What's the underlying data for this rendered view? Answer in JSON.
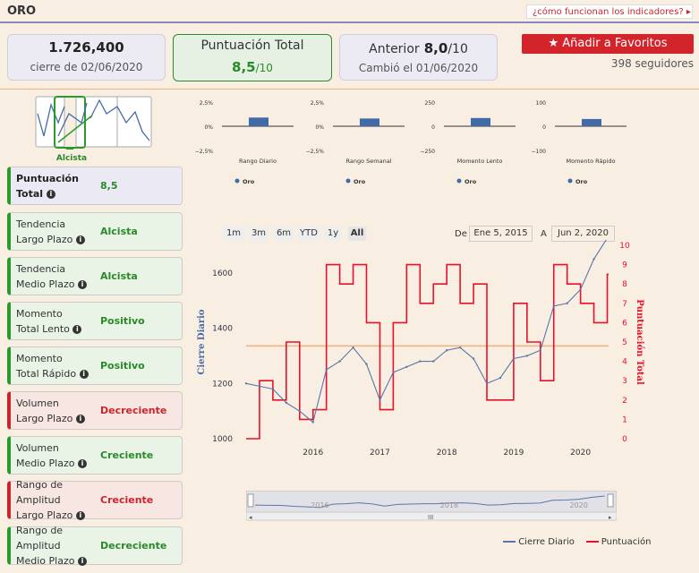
{
  "header": {
    "title": "ORO",
    "help_link": "¿cómo funcionan los indicadores?"
  },
  "cards": {
    "close_value": "1.726,400",
    "close_date": "cierre de 02/06/2020",
    "score_title": "Puntuación Total",
    "score_value": "8,5",
    "score_of": "/10",
    "prev_label": "Anterior",
    "prev_value": "8,0",
    "prev_of": "/10",
    "prev_changed": "Cambió el 01/06/2020"
  },
  "favorite": {
    "label": "Añadir a Favoritos",
    "followers": "398 seguidores"
  },
  "trend_thumb_label": "Alcista",
  "indicators": [
    {
      "line1": "Puntuación",
      "line2": "Total",
      "value": "8,5",
      "kind": "blue"
    },
    {
      "line1": "Tendencia",
      "line2": "Largo Plazo",
      "value": "Alcista",
      "kind": "green"
    },
    {
      "line1": "Tendencia",
      "line2": "Medio Plazo",
      "value": "Alcista",
      "kind": "green"
    },
    {
      "line1": "Momento",
      "line2": "Total Lento",
      "value": "Positivo",
      "kind": "green"
    },
    {
      "line1": "Momento",
      "line2": "Total Rápido",
      "value": "Positivo",
      "kind": "green"
    },
    {
      "line1": "Volumen",
      "line2": "Largo Plazo",
      "value": "Decreciente",
      "kind": "red"
    },
    {
      "line1": "Volumen",
      "line2": "Medio Plazo",
      "value": "Creciente",
      "kind": "green"
    },
    {
      "line1": "Rango de Amplitud",
      "line2": "Largo Plazo",
      "value": "Creciente",
      "kind": "red"
    },
    {
      "line1": "Rango de Amplitud",
      "line2": "Medio Plazo",
      "value": "Decreciente",
      "kind": "green"
    }
  ],
  "chart_data": [
    {
      "type": "bar",
      "title": "Rango Diario",
      "categories": [
        ""
      ],
      "series": [
        {
          "name": "Oro",
          "values": [
            0.9
          ]
        }
      ],
      "ylim": [
        -2.5,
        2.5
      ],
      "yticks": [
        "2,5%",
        "0%",
        "−2,5%"
      ]
    },
    {
      "type": "bar",
      "title": "Rango Semanal",
      "categories": [
        ""
      ],
      "series": [
        {
          "name": "Oro",
          "values": [
            0.8
          ]
        }
      ],
      "ylim": [
        -2.5,
        2.5
      ],
      "yticks": [
        "2,5%",
        "0%",
        "−2,5%"
      ]
    },
    {
      "type": "bar",
      "title": "Momento Lento",
      "categories": [
        ""
      ],
      "series": [
        {
          "name": "Oro",
          "values": [
            85
          ]
        }
      ],
      "ylim": [
        -250,
        250
      ],
      "yticks": [
        "250",
        "0",
        "−250"
      ]
    },
    {
      "type": "bar",
      "title": "Momento Rápido",
      "categories": [
        ""
      ],
      "series": [
        {
          "name": "Oro",
          "values": [
            30
          ]
        }
      ],
      "ylim": [
        -100,
        100
      ],
      "yticks": [
        "100",
        "0",
        "−100"
      ]
    },
    {
      "type": "line",
      "range_buttons": [
        "1m",
        "3m",
        "6m",
        "YTD",
        "1y",
        "All"
      ],
      "selected_range": "All",
      "from_label": "De",
      "from_value": "Ene 5, 2015",
      "to_label": "A",
      "to_value": "Jun 2, 2020",
      "ylabel_left": "Cierre Diario",
      "ylabel_right": "Puntuación Total",
      "y_left_ticks": [
        1000,
        1200,
        1400,
        1600
      ],
      "y_left_lim": [
        1000,
        1700
      ],
      "y_right_ticks": [
        0,
        1,
        2,
        3,
        4,
        5,
        6,
        7,
        8,
        9,
        10
      ],
      "y_right_lim": [
        0,
        10
      ],
      "x_ticks": [
        "2016",
        "2017",
        "2018",
        "2019",
        "2020"
      ],
      "x": [
        2015.0,
        2015.2,
        2015.4,
        2015.6,
        2015.8,
        2016.0,
        2016.2,
        2016.4,
        2016.6,
        2016.8,
        2017.0,
        2017.2,
        2017.4,
        2017.6,
        2017.8,
        2018.0,
        2018.2,
        2018.4,
        2018.6,
        2018.8,
        2019.0,
        2019.2,
        2019.4,
        2019.6,
        2019.8,
        2020.0,
        2020.2,
        2020.4
      ],
      "series": [
        {
          "name": "Cierre Diario",
          "axis": "left",
          "color": "#5b76a8",
          "values": [
            1200,
            1190,
            1180,
            1130,
            1100,
            1060,
            1250,
            1280,
            1330,
            1270,
            1140,
            1240,
            1260,
            1280,
            1280,
            1320,
            1330,
            1290,
            1200,
            1220,
            1290,
            1300,
            1320,
            1480,
            1490,
            1540,
            1650,
            1726
          ]
        },
        {
          "name": "Puntuación",
          "axis": "right",
          "color": "#e8102a",
          "values": [
            0,
            3,
            2,
            5,
            1,
            1.5,
            9,
            8,
            9,
            6,
            1.5,
            6,
            9,
            7,
            8,
            9,
            7,
            8,
            2,
            2,
            7,
            5,
            3,
            9,
            8,
            7,
            6,
            8.5
          ]
        }
      ],
      "reference_line_right": 4.8
    }
  ],
  "navigator_ticks": [
    "2016",
    "2018",
    "2020"
  ],
  "legend": {
    "close": "Cierre Diario",
    "score": "Puntuación"
  }
}
